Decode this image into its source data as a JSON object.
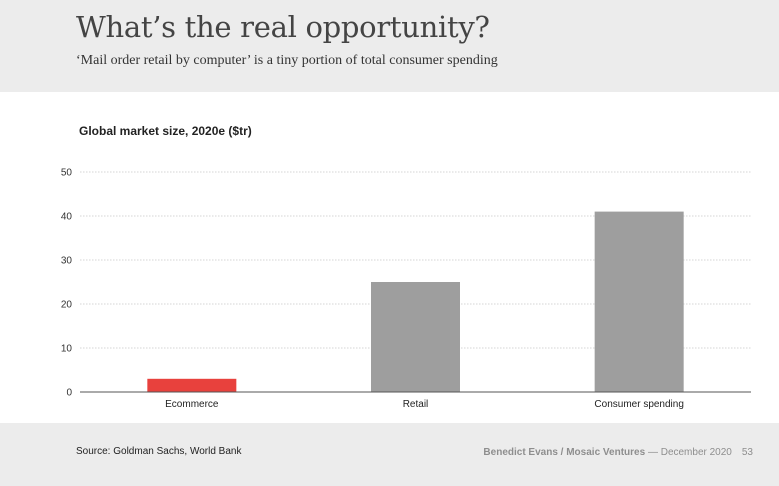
{
  "header": {
    "title": "What’s the real opportunity?",
    "subtitle": "‘Mail order retail by computer’ is a tiny portion of total consumer spending"
  },
  "chart_data": {
    "type": "bar",
    "title": "Global market size, 2020e ($tr)",
    "categories": [
      "Ecommerce",
      "Retail",
      "Consumer spending"
    ],
    "values": [
      3,
      25,
      41
    ],
    "colors": [
      "#e8413d",
      "#9e9e9e",
      "#9e9e9e"
    ],
    "yticks": [
      0,
      10,
      20,
      30,
      40,
      50
    ],
    "ylim": [
      0,
      50
    ],
    "xlabel": "",
    "ylabel": "",
    "grid": true
  },
  "footer": {
    "source": "Source: Goldman Sachs, World Bank",
    "author": "Benedict Evans / Mosaic Ventures",
    "date": "— December 2020",
    "page": "53"
  }
}
